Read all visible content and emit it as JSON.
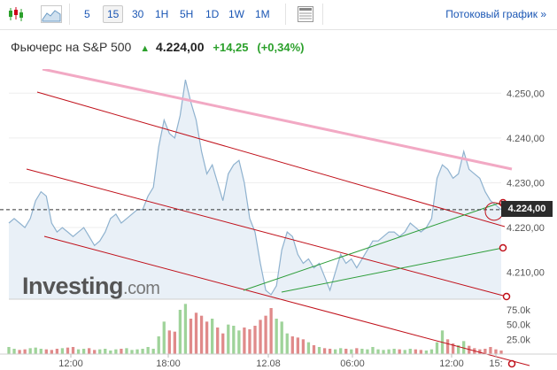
{
  "toolbar": {
    "timeframes": [
      "5",
      "15",
      "30",
      "1H",
      "5H",
      "1D",
      "1W",
      "1M"
    ],
    "active_timeframe": "15",
    "stream_link": "Потоковый график »"
  },
  "header": {
    "instrument": "Фьючерс на S&P 500",
    "arrow": "▲",
    "price": "4.224,00",
    "change": "+14,25",
    "change_pct": "(+0,34%)"
  },
  "watermark": {
    "brand": "Investing",
    "suffix": ".com"
  },
  "price_marker": "4.224,00",
  "colors": {
    "up": "#2ba02b",
    "link": "#1a56b4",
    "area_line": "#8fb2cf",
    "area_fill": "#e9f0f7",
    "channel": "#c0101a",
    "trend_pink": "#f2a9c4",
    "trend_green": "#2e9e3a"
  },
  "chart_data": {
    "type": "area",
    "x_ticks": [
      "12:00",
      "18:00",
      "12.08",
      "06:00",
      "12:00",
      "15:"
    ],
    "y_ticks": [
      "4.250,00",
      "4.240,00",
      "4.230,00",
      "4.220,00",
      "4.210,00"
    ],
    "ylim": [
      4204,
      4255
    ],
    "volume_ticks": [
      "75.0k",
      "50.0k",
      "25.0k"
    ],
    "volume_max": 90000,
    "price": [
      4221,
      4222,
      4221,
      4220,
      4222,
      4226,
      4228,
      4227,
      4221,
      4219,
      4220,
      4219,
      4218,
      4219,
      4220,
      4218,
      4216,
      4217,
      4219,
      4222,
      4223,
      4221,
      4222,
      4223,
      4224,
      4224,
      4227,
      4229,
      4238,
      4244,
      4241,
      4240,
      4245,
      4253,
      4248,
      4244,
      4237,
      4232,
      4234,
      4230,
      4226,
      4232,
      4234,
      4235,
      4230,
      4222,
      4219,
      4212,
      4206,
      4205,
      4207,
      4215,
      4219,
      4218,
      4214,
      4212,
      4213,
      4211,
      4212,
      4209,
      4206,
      4210,
      4214,
      4212,
      4213,
      4211,
      4213,
      4215,
      4217,
      4217,
      4218,
      4219,
      4219,
      4218,
      4219,
      4221,
      4220,
      4219,
      4220,
      4222,
      4231,
      4234,
      4233,
      4231,
      4232,
      4237,
      4233,
      4232,
      4231,
      4228,
      4226,
      4225,
      4224
    ],
    "volume": [
      12000,
      9000,
      7000,
      8000,
      10000,
      11000,
      9000,
      8000,
      7000,
      9000,
      10000,
      11000,
      12000,
      8000,
      9000,
      10000,
      7000,
      8000,
      9000,
      6000,
      8000,
      9000,
      10000,
      7000,
      8000,
      9000,
      12000,
      9000,
      30000,
      55000,
      40000,
      38000,
      75000,
      85000,
      60000,
      70000,
      65000,
      55000,
      60000,
      45000,
      35000,
      50000,
      48000,
      40000,
      45000,
      42000,
      48000,
      58000,
      65000,
      78000,
      60000,
      55000,
      35000,
      30000,
      28000,
      25000,
      20000,
      15000,
      12000,
      10000,
      9000,
      8000,
      10000,
      9000,
      8000,
      10000,
      9000,
      8000,
      12000,
      8000,
      7000,
      8000,
      9000,
      8000,
      7000,
      9000,
      8000,
      7000,
      6000,
      8000,
      20000,
      40000,
      25000,
      18000,
      15000,
      22000,
      14000,
      10000,
      8000,
      9000,
      12000,
      8000,
      6000
    ]
  }
}
